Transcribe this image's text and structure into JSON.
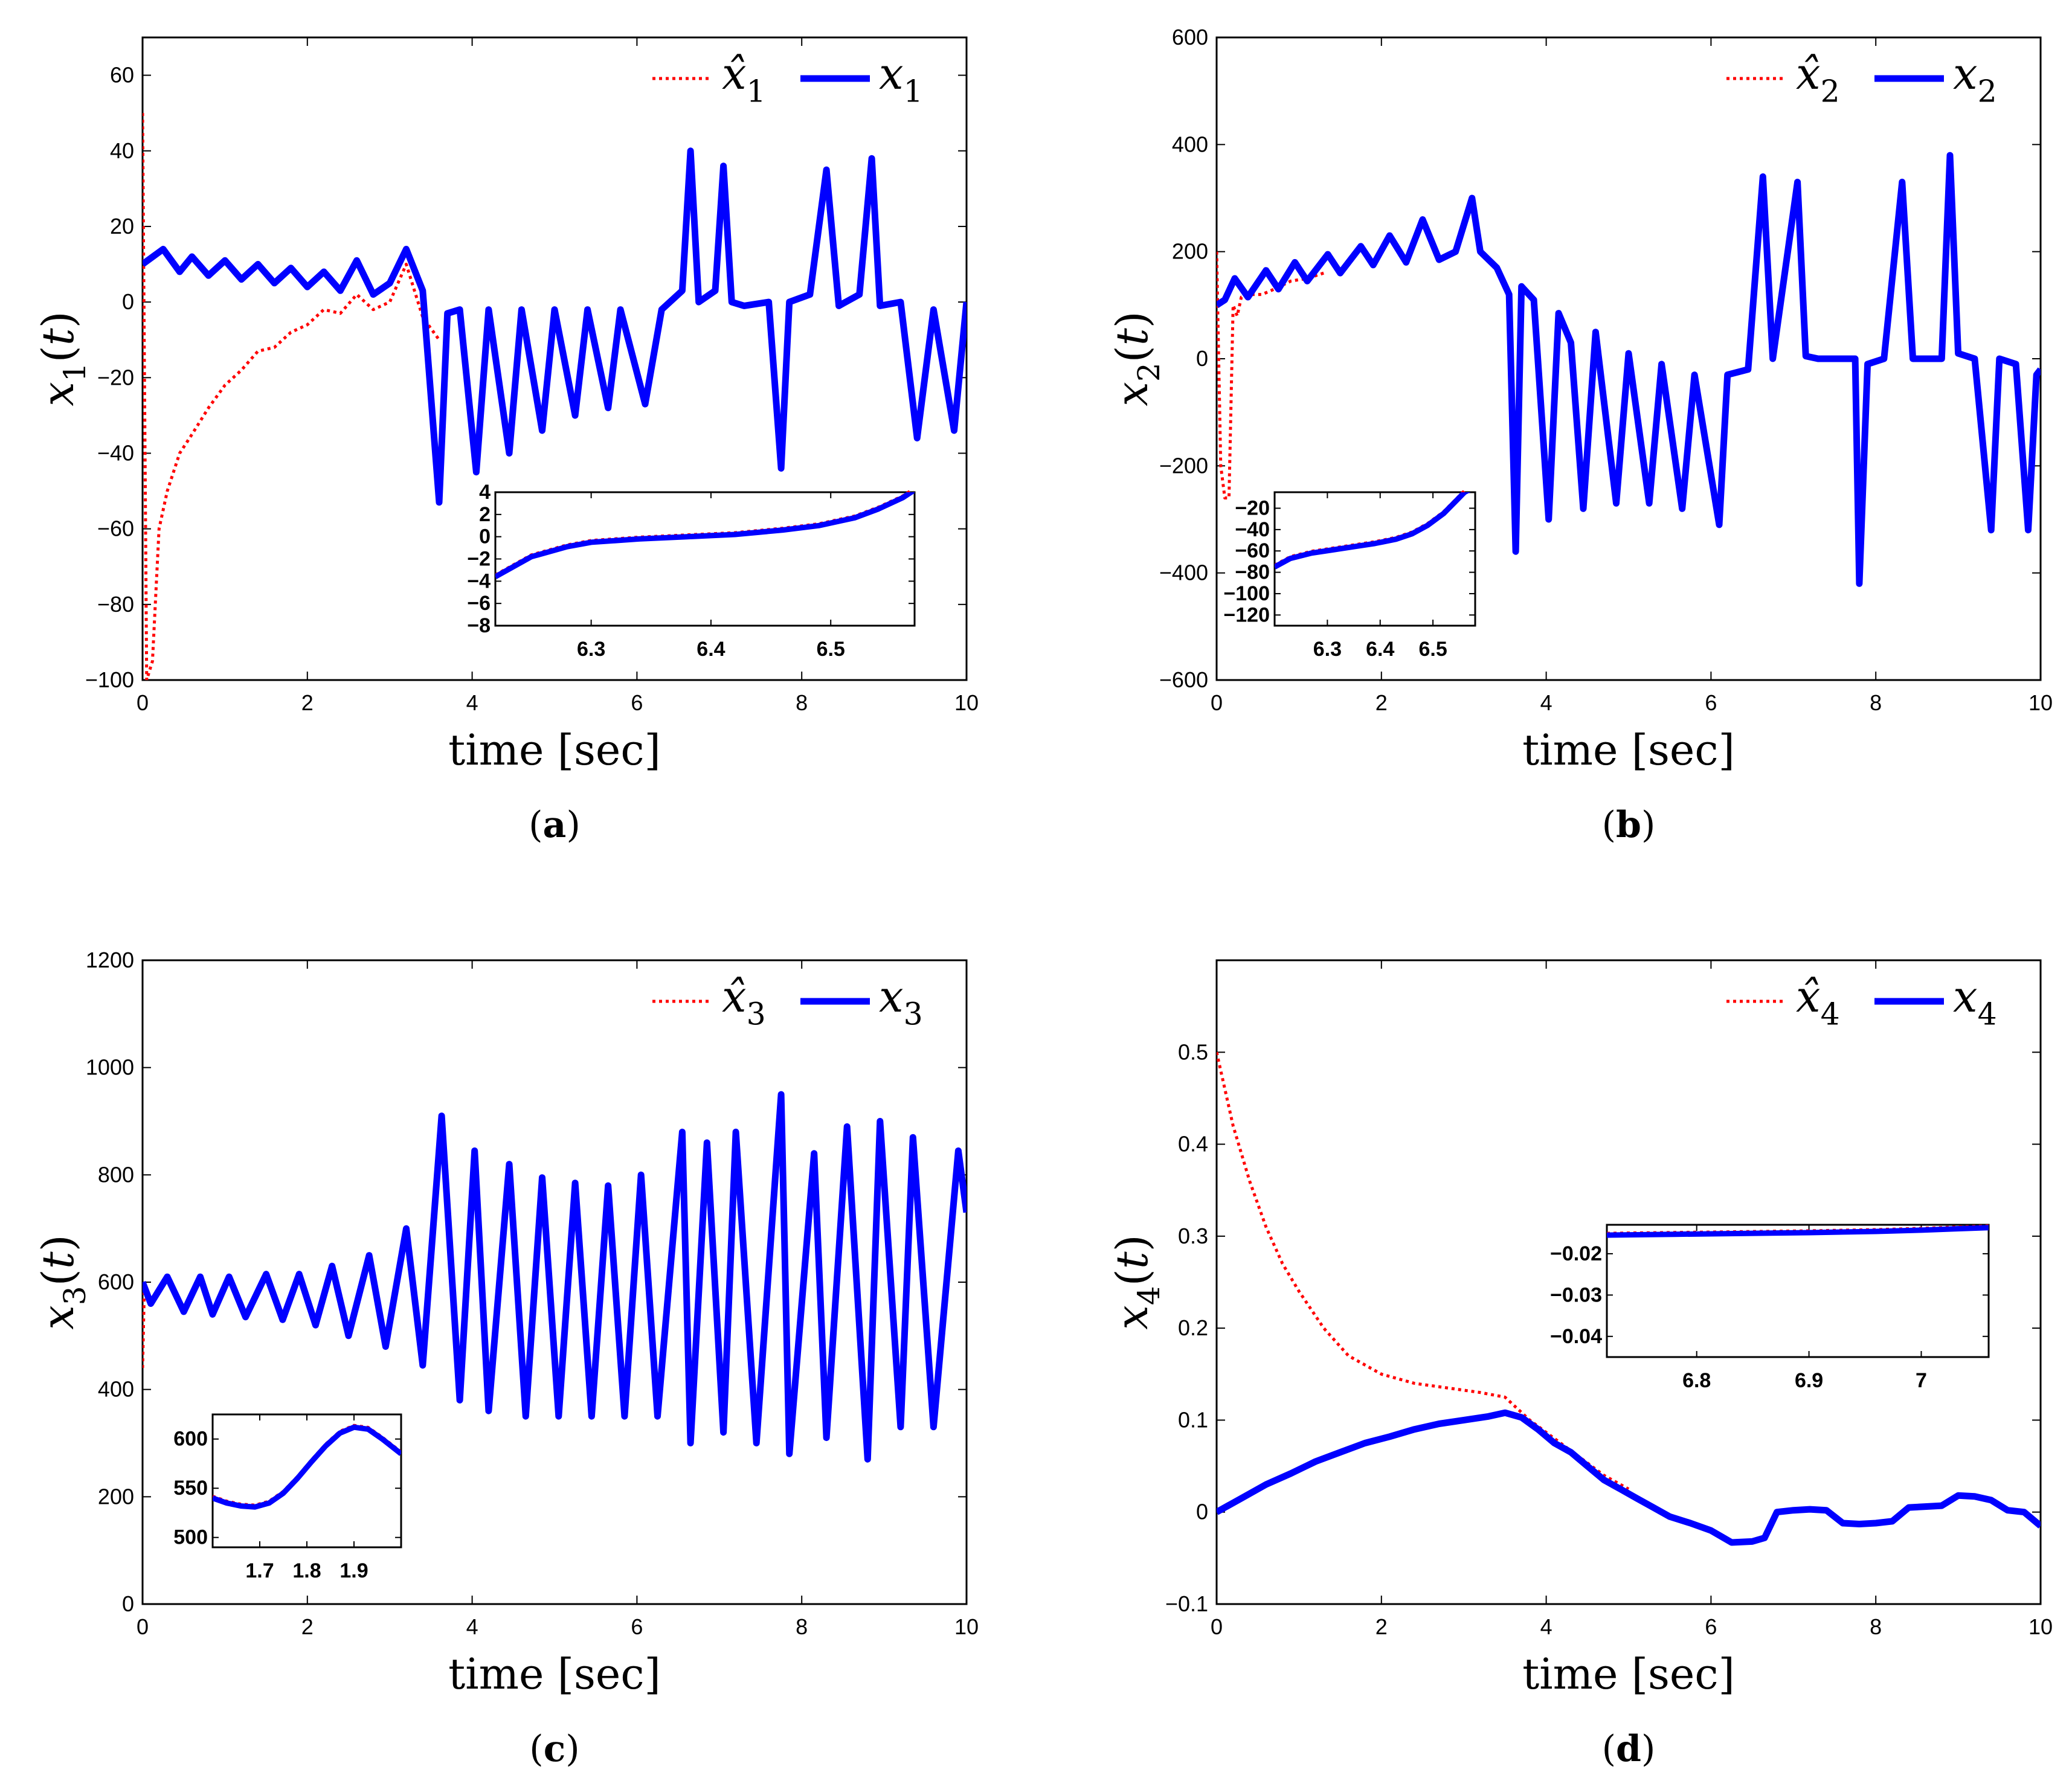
{
  "chart_data": [
    {
      "type": "line",
      "panel": "a",
      "caption": "(a)",
      "xlabel": "time [sec]",
      "ylabel": "x1(t)",
      "xlim": [
        0,
        10
      ],
      "ylim": [
        -100,
        70
      ],
      "xticks": [
        0,
        2,
        4,
        6,
        8,
        10
      ],
      "yticks": [
        -100,
        -80,
        -60,
        -40,
        -20,
        0,
        20,
        40,
        60
      ],
      "legend_position": "top-right",
      "legend_labels": [
        "x̂1",
        "x1"
      ],
      "series": [
        {
          "name": "x̂1",
          "style": "dotted",
          "color": "#ff0000",
          "x": [
            0,
            0.05,
            0.12,
            0.2,
            0.3,
            0.45,
            0.6,
            0.8,
            1.0,
            1.2,
            1.4,
            1.6,
            1.8,
            2.0,
            2.2,
            2.4,
            2.6,
            2.8,
            3.0,
            3.2,
            3.4,
            3.6
          ],
          "y": [
            50,
            -100,
            -95,
            -60,
            -50,
            -40,
            -35,
            -28,
            -22,
            -18,
            -13,
            -12,
            -8,
            -6,
            -2,
            -3,
            2,
            -2,
            0,
            10,
            -4,
            -10
          ]
        },
        {
          "name": "x1",
          "style": "solid",
          "color": "#0000ff",
          "x": [
            0,
            0.25,
            0.45,
            0.6,
            0.8,
            1.0,
            1.2,
            1.4,
            1.6,
            1.8,
            2.0,
            2.2,
            2.4,
            2.6,
            2.8,
            3.0,
            3.2,
            3.4,
            3.6,
            3.7,
            3.85,
            4.05,
            4.2,
            4.45,
            4.6,
            4.85,
            5.0,
            5.25,
            5.4,
            5.65,
            5.8,
            6.1,
            6.3,
            6.55,
            6.65,
            6.75,
            6.95,
            7.05,
            7.15,
            7.3,
            7.6,
            7.75,
            7.85,
            8.1,
            8.3,
            8.45,
            8.7,
            8.85,
            8.95,
            9.2,
            9.4,
            9.6,
            9.85,
            10.0
          ],
          "y": [
            10,
            14,
            8,
            12,
            7,
            11,
            6,
            10,
            5,
            9,
            4,
            8,
            3,
            11,
            2,
            5,
            14,
            3,
            -53,
            -3,
            -2,
            -45,
            -2,
            -40,
            -2,
            -34,
            -2,
            -30,
            -2,
            -28,
            -2,
            -27,
            -2,
            3,
            40,
            0,
            3,
            36,
            0,
            -1,
            0,
            -44,
            0,
            2,
            35,
            -1,
            2,
            38,
            -1,
            0,
            -36,
            -2,
            -34,
            0
          ]
        }
      ],
      "inset": {
        "xlim": [
          6.22,
          6.57
        ],
        "ylim": [
          -8,
          4
        ],
        "xticks": [
          6.3,
          6.4,
          6.5
        ],
        "yticks": [
          -8,
          -6,
          -4,
          -2,
          0,
          2,
          4
        ],
        "x": [
          6.22,
          6.25,
          6.28,
          6.3,
          6.34,
          6.38,
          6.42,
          6.46,
          6.49,
          6.52,
          6.54,
          6.56,
          6.57
        ],
        "y": [
          -3.6,
          -1.8,
          -0.9,
          -0.5,
          -0.2,
          0,
          0.2,
          0.6,
          1.0,
          1.7,
          2.5,
          3.5,
          4.2
        ]
      }
    },
    {
      "type": "line",
      "panel": "b",
      "caption": "(b)",
      "xlabel": "time [sec]",
      "ylabel": "x2(t)",
      "xlim": [
        0,
        10
      ],
      "ylim": [
        -600,
        600
      ],
      "xticks": [
        0,
        2,
        4,
        6,
        8,
        10
      ],
      "yticks": [
        -600,
        -400,
        -200,
        0,
        200,
        400,
        600
      ],
      "legend_position": "top-right",
      "legend_labels": [
        "x̂2",
        "x2"
      ],
      "series": [
        {
          "name": "x̂2",
          "style": "dotted",
          "color": "#ff0000",
          "x": [
            0,
            0.05,
            0.1,
            0.15,
            0.2,
            0.25,
            0.3,
            0.4,
            0.55,
            0.7,
            0.9,
            1.1,
            1.3
          ],
          "y": [
            200,
            -200,
            -260,
            -260,
            100,
            80,
            115,
            120,
            120,
            130,
            145,
            150,
            160
          ]
        },
        {
          "name": "x2",
          "style": "solid",
          "color": "#0000ff",
          "x": [
            0,
            0.1,
            0.22,
            0.38,
            0.6,
            0.75,
            0.95,
            1.1,
            1.35,
            1.5,
            1.75,
            1.9,
            2.1,
            2.3,
            2.5,
            2.7,
            2.9,
            3.1,
            3.2,
            3.4,
            3.55,
            3.63,
            3.7,
            3.85,
            4.03,
            4.15,
            4.3,
            4.45,
            4.6,
            4.85,
            5.0,
            5.25,
            5.4,
            5.65,
            5.8,
            6.1,
            6.2,
            6.45,
            6.63,
            6.75,
            7.05,
            7.15,
            7.3,
            7.6,
            7.75,
            7.8,
            7.9,
            8.1,
            8.32,
            8.45,
            8.8,
            8.9,
            9.0,
            9.2,
            9.4,
            9.5,
            9.7,
            9.85,
            9.95,
            10.0
          ],
          "y": [
            100,
            110,
            150,
            115,
            165,
            130,
            180,
            145,
            195,
            160,
            210,
            175,
            230,
            180,
            260,
            185,
            200,
            300,
            200,
            170,
            120,
            -360,
            135,
            110,
            -300,
            85,
            30,
            -280,
            50,
            -270,
            10,
            -270,
            -10,
            -280,
            -30,
            -310,
            -30,
            -20,
            340,
            0,
            330,
            5,
            0,
            0,
            0,
            -420,
            -10,
            0,
            330,
            0,
            0,
            380,
            10,
            0,
            -320,
            0,
            -10,
            -320,
            -30,
            -20
          ]
        }
      ],
      "inset": {
        "xlim": [
          6.2,
          6.58
        ],
        "ylim": [
          -130,
          -5
        ],
        "xticks": [
          6.3,
          6.4,
          6.5
        ],
        "yticks": [
          -120,
          -100,
          -80,
          -60,
          -40,
          -20
        ],
        "x": [
          6.2,
          6.23,
          6.27,
          6.31,
          6.35,
          6.39,
          6.43,
          6.46,
          6.49,
          6.52,
          6.54,
          6.56,
          6.58
        ],
        "y": [
          -75,
          -67,
          -62,
          -59,
          -56,
          -53,
          -49,
          -44,
          -36,
          -25,
          -15,
          -5,
          0
        ]
      }
    },
    {
      "type": "line",
      "panel": "c",
      "caption": "(c)",
      "xlabel": "time [sec]",
      "ylabel": "x3(t)",
      "xlim": [
        0,
        10
      ],
      "ylim": [
        0,
        1200
      ],
      "xticks": [
        0,
        2,
        4,
        6,
        8,
        10
      ],
      "yticks": [
        0,
        200,
        400,
        600,
        800,
        1000,
        1200
      ],
      "legend_position": "top-right",
      "legend_labels": [
        "x̂3",
        "x3"
      ],
      "series": [
        {
          "name": "x̂3",
          "style": "dotted",
          "color": "#ff0000",
          "x": [
            0,
            0.02,
            0.05
          ],
          "y": [
            440,
            580,
            600
          ]
        },
        {
          "name": "x3",
          "style": "solid",
          "color": "#0000ff",
          "x": [
            0,
            0.1,
            0.3,
            0.5,
            0.7,
            0.85,
            1.05,
            1.25,
            1.5,
            1.7,
            1.9,
            2.1,
            2.3,
            2.5,
            2.75,
            2.95,
            3.2,
            3.4,
            3.63,
            3.85,
            4.03,
            4.2,
            4.45,
            4.65,
            4.85,
            5.05,
            5.25,
            5.45,
            5.65,
            5.85,
            6.05,
            6.25,
            6.55,
            6.65,
            6.85,
            7.05,
            7.2,
            7.45,
            7.75,
            7.85,
            8.15,
            8.3,
            8.55,
            8.8,
            8.95,
            9.2,
            9.35,
            9.6,
            9.9,
            10.0
          ],
          "y": [
            600,
            560,
            610,
            545,
            610,
            540,
            610,
            535,
            615,
            530,
            615,
            520,
            630,
            500,
            650,
            480,
            700,
            445,
            910,
            380,
            845,
            360,
            820,
            350,
            795,
            350,
            785,
            350,
            780,
            350,
            800,
            350,
            880,
            300,
            860,
            320,
            880,
            300,
            950,
            280,
            840,
            310,
            890,
            270,
            900,
            330,
            870,
            330,
            845,
            730
          ]
        }
      ],
      "inset": {
        "xlim": [
          1.6,
          2.0
        ],
        "ylim": [
          490,
          625
        ],
        "xticks": [
          1.7,
          1.8,
          1.9
        ],
        "yticks": [
          500,
          550,
          600
        ],
        "x": [
          1.6,
          1.63,
          1.66,
          1.69,
          1.72,
          1.75,
          1.78,
          1.81,
          1.84,
          1.87,
          1.9,
          1.93,
          1.96,
          2.0
        ],
        "y": [
          540,
          535,
          532,
          531,
          535,
          545,
          560,
          577,
          593,
          606,
          612,
          610,
          600,
          585
        ]
      }
    },
    {
      "type": "line",
      "panel": "d",
      "caption": "(d)",
      "xlabel": "time [sec]",
      "ylabel": "x4(t)",
      "xlim": [
        0,
        10
      ],
      "ylim": [
        -0.1,
        0.6
      ],
      "xticks": [
        0,
        2,
        4,
        6,
        8,
        10
      ],
      "yticks": [
        -0.1,
        0,
        0.1,
        0.2,
        0.3,
        0.4,
        0.5
      ],
      "legend_position": "top-right",
      "legend_labels": [
        "x̂4",
        "x4"
      ],
      "series": [
        {
          "name": "x̂4",
          "style": "dotted",
          "color": "#ff0000",
          "x": [
            0,
            0.2,
            0.4,
            0.6,
            0.8,
            1.0,
            1.3,
            1.6,
            2.0,
            2.4,
            2.8,
            3.2,
            3.5,
            3.8,
            4.1,
            4.4,
            4.7,
            5.0
          ],
          "y": [
            0.5,
            0.42,
            0.36,
            0.31,
            0.27,
            0.24,
            0.2,
            0.17,
            0.15,
            0.14,
            0.135,
            0.13,
            0.125,
            0.1,
            0.08,
            0.06,
            0.04,
            0.025
          ]
        },
        {
          "name": "x4",
          "style": "solid",
          "color": "#0000ff",
          "x": [
            0,
            0.3,
            0.6,
            0.9,
            1.2,
            1.5,
            1.8,
            2.1,
            2.4,
            2.7,
            3.0,
            3.3,
            3.5,
            3.7,
            3.9,
            4.1,
            4.3,
            4.5,
            4.7,
            4.9,
            5.1,
            5.3,
            5.5,
            5.75,
            6.0,
            6.25,
            6.5,
            6.65,
            6.8,
            7.0,
            7.2,
            7.4,
            7.6,
            7.8,
            8.0,
            8.2,
            8.4,
            8.6,
            8.8,
            9.0,
            9.2,
            9.4,
            9.6,
            9.8,
            10.0
          ],
          "y": [
            0.0,
            0.015,
            0.03,
            0.042,
            0.055,
            0.065,
            0.075,
            0.082,
            0.09,
            0.096,
            0.1,
            0.104,
            0.108,
            0.103,
            0.09,
            0.075,
            0.065,
            0.05,
            0.035,
            0.025,
            0.015,
            0.005,
            -0.005,
            -0.012,
            -0.02,
            -0.033,
            -0.032,
            -0.028,
            0.0,
            0.002,
            0.003,
            0.002,
            -0.012,
            -0.013,
            -0.012,
            -0.01,
            0.005,
            0.006,
            0.007,
            0.018,
            0.017,
            0.013,
            0.002,
            0.0,
            -0.015
          ]
        }
      ],
      "inset": {
        "xlim": [
          6.72,
          7.06
        ],
        "ylim": [
          -0.045,
          -0.013
        ],
        "xticks": [
          6.8,
          6.9,
          7
        ],
        "yticks": [
          -0.04,
          -0.03,
          -0.02
        ],
        "x": [
          6.72,
          6.78,
          6.84,
          6.9,
          6.96,
          7.0,
          7.03,
          7.06
        ],
        "y": [
          -0.0155,
          -0.0153,
          -0.0151,
          -0.0149,
          -0.0146,
          -0.0143,
          -0.014,
          -0.0137
        ]
      }
    }
  ]
}
